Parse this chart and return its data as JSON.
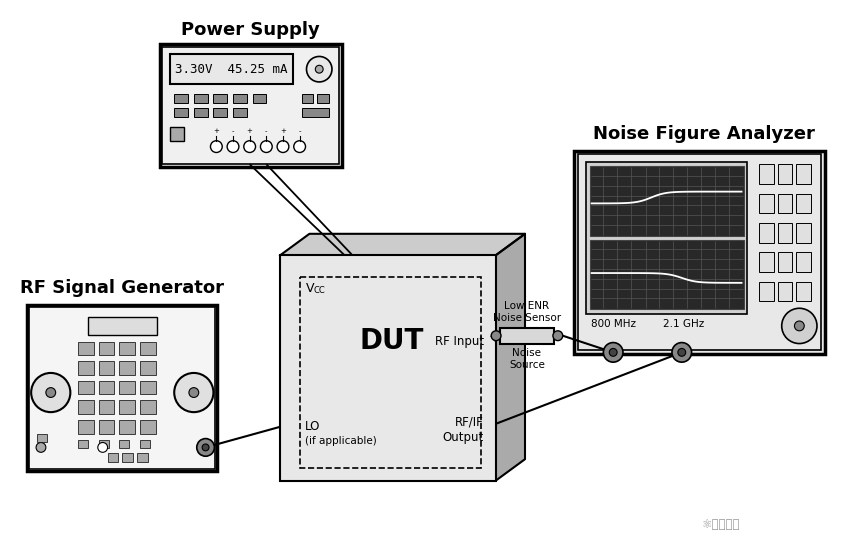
{
  "bg_color": "#ffffff",
  "title_power_supply": "Power Supply",
  "title_noise_figure": "Noise Figure Analyzer",
  "title_rf_signal": "RF Signal Generator",
  "dut_label": "DUT",
  "lo_label": "LO",
  "lo_sub": "(if applicable)",
  "rf_input_label": "RF Input",
  "rf_if_output_label": "RF/IF\nOutput",
  "low_enr_label": "Low ENR\nNoise Sensor",
  "noise_source_label": "Noise\nSource",
  "ps_display": "3.30V  45.25 mA",
  "nfa_freq1": "800 MHz",
  "nfa_freq2": "2.1 GHz",
  "watermark": "⚛海马硬件"
}
